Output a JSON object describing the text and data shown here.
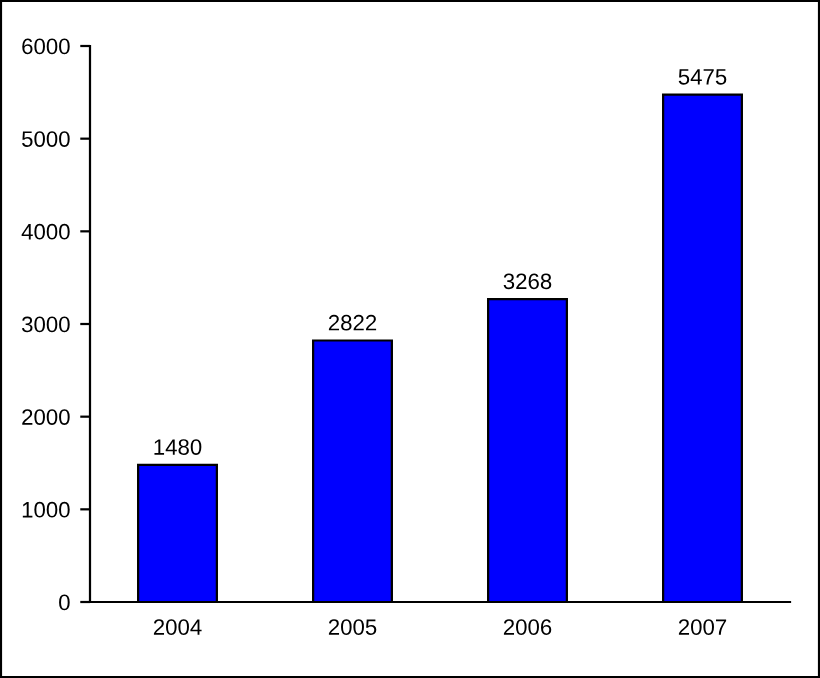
{
  "chart_data": {
    "type": "bar",
    "categories": [
      "2004",
      "2005",
      "2006",
      "2007"
    ],
    "values": [
      1480,
      2822,
      3268,
      5475
    ],
    "color": "#0000ff",
    "ylim": [
      0,
      6000
    ],
    "yticks": [
      0,
      1000,
      2000,
      3000,
      4000,
      5000,
      6000
    ],
    "data_labels": true,
    "grid": false,
    "legend": false
  }
}
